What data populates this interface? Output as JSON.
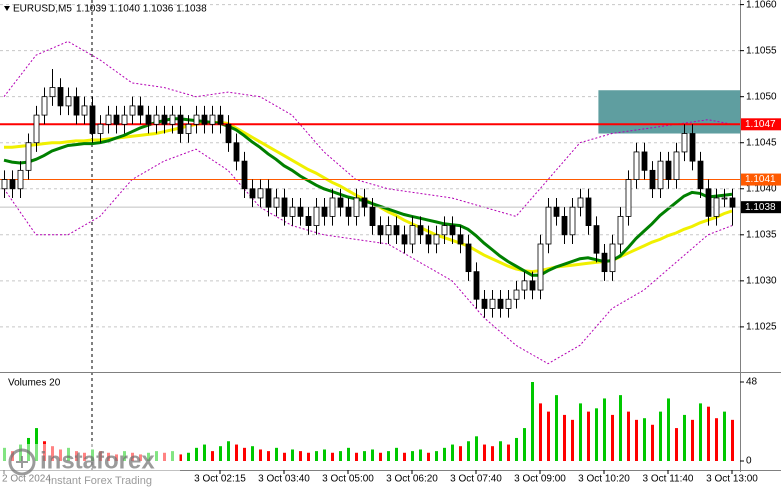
{
  "chart_data": {
    "type": "candlestick",
    "header": {
      "symbol": "EURUSD,M5",
      "quote": "1.1039 1.1040 1.1036 1.1038"
    },
    "categories": [
      "2 Oct 2024",
      null,
      null,
      null,
      null,
      null,
      null,
      null,
      null,
      null,
      null,
      null,
      null,
      null,
      null,
      null,
      null,
      null,
      null,
      null,
      null,
      null,
      null,
      null,
      null,
      null,
      null,
      "3 Oct 02:15",
      null,
      null,
      null,
      null,
      null,
      null,
      null,
      "3 Oct 03:40",
      null,
      null,
      null,
      null,
      null,
      null,
      null,
      "3 Oct 05:00",
      null,
      null,
      null,
      null,
      null,
      null,
      null,
      "3 Oct 06:20",
      null,
      null,
      null,
      null,
      null,
      null,
      null,
      "3 Oct 07:40",
      null,
      null,
      null,
      null,
      null,
      null,
      null,
      "3 Oct 09:00",
      null,
      null,
      null,
      null,
      null,
      null,
      null,
      "3 Oct 10:20",
      null,
      null,
      null,
      null,
      null,
      null,
      null,
      "3 Oct 11:40",
      null,
      null,
      null,
      null,
      null,
      null,
      null,
      "3 Oct 13:00"
    ],
    "open": [
      1.104,
      1.1041,
      1.104,
      1.1042,
      1.1045,
      1.1048,
      1.105,
      1.1051,
      1.1049,
      1.105,
      1.1048,
      1.1049,
      1.1046,
      1.1047,
      1.1048,
      1.1047,
      1.1048,
      1.1049,
      1.1048,
      1.1047,
      1.1048,
      1.1047,
      1.1048,
      1.1046,
      1.1047,
      1.1048,
      1.1047,
      1.1048,
      1.1047,
      1.1045,
      1.1043,
      1.104,
      1.1039,
      1.104,
      1.1038,
      1.1039,
      1.1037,
      1.1038,
      1.1037,
      1.1036,
      1.1038,
      1.1037,
      1.1039,
      1.1038,
      1.1037,
      1.1039,
      1.1038,
      1.1036,
      1.1035,
      1.1036,
      1.1035,
      1.1034,
      1.1036,
      1.1035,
      1.1034,
      1.1035,
      1.1036,
      1.1035,
      1.1034,
      1.1031,
      1.1028,
      1.1027,
      1.1028,
      1.1027,
      1.1028,
      1.1029,
      1.103,
      1.1029,
      1.1034,
      1.1038,
      1.1037,
      1.1035,
      1.1038,
      1.1039,
      1.1036,
      1.1033,
      1.1031,
      1.1034,
      1.1037,
      1.1041,
      1.1044,
      1.1042,
      1.104,
      1.1043,
      1.1041,
      1.1044,
      1.1046,
      1.1043,
      1.104,
      1.1037,
      1.1039,
      1.1039
    ],
    "high": [
      1.1042,
      1.1042,
      1.1043,
      1.1046,
      1.1049,
      1.1051,
      1.1053,
      1.1052,
      1.1051,
      1.1051,
      1.105,
      1.105,
      1.1048,
      1.1049,
      1.1049,
      1.1049,
      1.105,
      1.105,
      1.1049,
      1.1049,
      1.1049,
      1.1049,
      1.1049,
      1.1048,
      1.1049,
      1.1049,
      1.1049,
      1.1049,
      1.1048,
      1.1046,
      1.1044,
      1.1041,
      1.1041,
      1.1041,
      1.104,
      1.104,
      1.1039,
      1.1039,
      1.1038,
      1.1039,
      1.1039,
      1.104,
      1.104,
      1.1039,
      1.104,
      1.104,
      1.1039,
      1.1037,
      1.1037,
      1.1037,
      1.1036,
      1.1037,
      1.1037,
      1.1036,
      1.1036,
      1.1037,
      1.1037,
      1.1036,
      1.1035,
      1.1032,
      1.1029,
      1.1029,
      1.1029,
      1.1029,
      1.103,
      1.1031,
      1.1031,
      1.1035,
      1.1039,
      1.1039,
      1.1038,
      1.1039,
      1.104,
      1.104,
      1.1037,
      1.1034,
      1.1035,
      1.1038,
      1.1042,
      1.1045,
      1.1045,
      1.1043,
      1.1044,
      1.1044,
      1.1045,
      1.1047,
      1.1047,
      1.1044,
      1.1041,
      1.104,
      1.104,
      1.104
    ],
    "low": [
      1.1039,
      1.1039,
      1.1039,
      1.1041,
      1.1044,
      1.1047,
      1.1049,
      1.1048,
      1.1048,
      1.1047,
      1.1047,
      1.1045,
      1.1045,
      1.1046,
      1.1046,
      1.1046,
      1.1047,
      1.1047,
      1.1046,
      1.1046,
      1.1046,
      1.1046,
      1.1045,
      1.1045,
      1.1046,
      1.1046,
      1.1046,
      1.1046,
      1.1044,
      1.1042,
      1.1039,
      1.1038,
      1.1038,
      1.1037,
      1.1037,
      1.1036,
      1.1036,
      1.1036,
      1.1035,
      1.1035,
      1.1036,
      1.1036,
      1.1037,
      1.1036,
      1.1036,
      1.1037,
      1.1035,
      1.1034,
      1.1034,
      1.1034,
      1.1033,
      1.1033,
      1.1034,
      1.1033,
      1.1033,
      1.1034,
      1.1034,
      1.1033,
      1.103,
      1.1027,
      1.1026,
      1.1026,
      1.1026,
      1.1026,
      1.1027,
      1.1028,
      1.1028,
      1.1028,
      1.1033,
      1.1036,
      1.1034,
      1.1034,
      1.1037,
      1.1035,
      1.1032,
      1.103,
      1.103,
      1.1033,
      1.1036,
      1.104,
      1.1041,
      1.1039,
      1.1039,
      1.104,
      1.104,
      1.1043,
      1.1042,
      1.1039,
      1.1036,
      1.1036,
      1.1038,
      1.1036
    ],
    "close": [
      1.1041,
      1.104,
      1.1042,
      1.1045,
      1.1048,
      1.105,
      1.1051,
      1.1049,
      1.105,
      1.1048,
      1.1049,
      1.1046,
      1.1047,
      1.1048,
      1.1047,
      1.1048,
      1.1049,
      1.1048,
      1.1047,
      1.1048,
      1.1047,
      1.1048,
      1.1046,
      1.1047,
      1.1048,
      1.1047,
      1.1048,
      1.1047,
      1.1045,
      1.1043,
      1.104,
      1.1039,
      1.104,
      1.1038,
      1.1039,
      1.1037,
      1.1038,
      1.1037,
      1.1036,
      1.1038,
      1.1037,
      1.1039,
      1.1038,
      1.1037,
      1.1039,
      1.1038,
      1.1036,
      1.1035,
      1.1036,
      1.1035,
      1.1034,
      1.1036,
      1.1035,
      1.1034,
      1.1035,
      1.1036,
      1.1035,
      1.1034,
      1.1031,
      1.1028,
      1.1027,
      1.1028,
      1.1027,
      1.1028,
      1.1029,
      1.103,
      1.1029,
      1.1034,
      1.1038,
      1.1037,
      1.1035,
      1.1038,
      1.1039,
      1.1036,
      1.1033,
      1.1031,
      1.1034,
      1.1037,
      1.1041,
      1.1044,
      1.1042,
      1.104,
      1.1043,
      1.1041,
      1.1044,
      1.1046,
      1.1043,
      1.104,
      1.1037,
      1.1039,
      1.1039,
      1.1038
    ],
    "up_color": "#ffffff",
    "down_color": "#000000",
    "outline_color": "#000000",
    "series": [
      {
        "color": "#f0f000",
        "width": 3,
        "values": [
          1.10445,
          1.10445,
          1.10446,
          1.10447,
          1.10448,
          1.10449,
          1.1045,
          1.1045,
          1.10451,
          1.10452,
          1.10452,
          1.10453,
          1.10453,
          1.10454,
          1.10455,
          1.10456,
          1.10457,
          1.10458,
          1.10459,
          1.1046,
          1.10462,
          1.10464,
          1.10466,
          1.10468,
          1.1047,
          1.10471,
          1.10472,
          1.10472,
          1.10471,
          1.10466,
          1.10461,
          1.10456,
          1.10451,
          1.10446,
          1.10441,
          1.10436,
          1.10431,
          1.10426,
          1.10421,
          1.10417,
          1.10412,
          1.10407,
          1.10403,
          1.10398,
          1.10393,
          1.10389,
          1.10384,
          1.1038,
          1.10375,
          1.10371,
          1.10366,
          1.10362,
          1.10358,
          1.10354,
          1.1035,
          1.10347,
          1.10344,
          1.10341,
          1.10338,
          1.10333,
          1.10328,
          1.10324,
          1.1032,
          1.10316,
          1.10313,
          1.10311,
          1.1031,
          1.10311,
          1.10313,
          1.10315,
          1.10316,
          1.10317,
          1.10318,
          1.10319,
          1.1032,
          1.10321,
          1.10322,
          1.10326,
          1.1033,
          1.10334,
          1.10338,
          1.10342,
          1.10345,
          1.10349,
          1.10352,
          1.10356,
          1.10359,
          1.10363,
          1.10366,
          1.10369,
          1.10373,
          1.10376
        ]
      },
      {
        "color": "#008000",
        "width": 3,
        "values": [
          1.10431,
          1.10429,
          1.10428,
          1.10429,
          1.10432,
          1.10436,
          1.10441,
          1.10444,
          1.10447,
          1.10448,
          1.10449,
          1.10449,
          1.1045,
          1.10452,
          1.10455,
          1.10458,
          1.10462,
          1.10466,
          1.10469,
          1.10472,
          1.10474,
          1.10476,
          1.10476,
          1.10475,
          1.10474,
          1.10473,
          1.10472,
          1.10471,
          1.10468,
          1.10464,
          1.10458,
          1.10451,
          1.10445,
          1.10438,
          1.10432,
          1.10425,
          1.1042,
          1.10414,
          1.10409,
          1.10404,
          1.104,
          1.10397,
          1.10394,
          1.10391,
          1.10389,
          1.10387,
          1.10384,
          1.10381,
          1.10378,
          1.10375,
          1.10372,
          1.1037,
          1.10368,
          1.10366,
          1.10364,
          1.10362,
          1.10361,
          1.1036,
          1.10356,
          1.10349,
          1.10341,
          1.10334,
          1.10327,
          1.10321,
          1.10316,
          1.10311,
          1.10306,
          1.10306,
          1.10311,
          1.10315,
          1.10318,
          1.10321,
          1.10324,
          1.10325,
          1.10323,
          1.10321,
          1.10322,
          1.10327,
          1.10336,
          1.10346,
          1.10354,
          1.10362,
          1.10371,
          1.10378,
          1.10385,
          1.10392,
          1.10396,
          1.10395,
          1.10391,
          1.10392,
          1.10393,
          1.10394
        ]
      },
      {
        "color": "#b400b4",
        "width": 1,
        "style": "dotted",
        "x": [
          0,
          4,
          8,
          12,
          16,
          20,
          24,
          28,
          32,
          36,
          40,
          44,
          48,
          52,
          56,
          60,
          64,
          68,
          72,
          76,
          80,
          84,
          88,
          91
        ],
        "values": [
          1.105,
          1.10545,
          1.1056,
          1.1054,
          1.10515,
          1.1051,
          1.105,
          1.10505,
          1.105,
          1.1048,
          1.1044,
          1.1041,
          1.104,
          1.10395,
          1.1039,
          1.1038,
          1.1037,
          1.1041,
          1.1045,
          1.1046,
          1.10465,
          1.1047,
          1.10475,
          1.1047
        ]
      },
      {
        "color": "#b400b4",
        "width": 1,
        "style": "dotted",
        "x": [
          0,
          4,
          8,
          12,
          16,
          20,
          24,
          28,
          32,
          36,
          40,
          44,
          48,
          52,
          56,
          60,
          64,
          68,
          72,
          76,
          80,
          84,
          88,
          91
        ],
        "values": [
          1.104,
          1.1035,
          1.1035,
          1.1037,
          1.1041,
          1.1043,
          1.10443,
          1.1042,
          1.1038,
          1.1036,
          1.1035,
          1.10345,
          1.1034,
          1.1032,
          1.103,
          1.1026,
          1.1023,
          1.1021,
          1.1023,
          1.1027,
          1.1029,
          1.1032,
          1.1035,
          1.1036
        ]
      }
    ],
    "levels": [
      {
        "value": 1.1047,
        "color": "#ff0000",
        "width": 2
      },
      {
        "value": 1.1041,
        "color": "#ff5a00",
        "width": 1
      },
      {
        "value": 1.1038,
        "color": "#c0c0c0",
        "width": 1,
        "box": "#000000"
      }
    ],
    "zone": {
      "low": 1.1046,
      "high": 1.10507,
      "x_from": 74.3,
      "color": "#5f9ea0"
    },
    "marker_x": 11,
    "ylim": [
      1.10201,
      1.10605
    ],
    "yticks": [
      {
        "value": 1.106,
        "label": "1.1060"
      },
      1.1055,
      {
        "value": 1.105,
        "label": "1.1050"
      },
      1.1045,
      {
        "value": 1.104,
        "label": "1.1040"
      },
      1.1035,
      {
        "value": 1.103,
        "label": "1.1030"
      },
      1.1025
    ],
    "grid": true,
    "volume_title": "Volumes 20",
    "volumes": [
      8,
      6,
      10,
      14,
      20,
      12,
      9,
      7,
      8,
      6,
      5,
      7,
      6,
      5,
      4,
      6,
      5,
      4,
      5,
      6,
      5,
      6,
      4,
      5,
      8,
      10,
      6,
      9,
      12,
      10,
      8,
      9,
      7,
      6,
      8,
      5,
      7,
      6,
      5,
      6,
      7,
      5,
      6,
      8,
      5,
      6,
      7,
      5,
      6,
      8,
      5,
      6,
      7,
      5,
      6,
      8,
      10,
      9,
      12,
      15,
      10,
      9,
      12,
      10,
      14,
      20,
      48,
      35,
      30,
      40,
      28,
      25,
      35,
      30,
      32,
      38,
      28,
      40,
      30,
      25,
      26,
      22,
      30,
      38,
      20,
      28,
      25,
      35,
      33,
      26,
      30,
      25
    ],
    "vol_ylim": [
      0,
      52
    ],
    "vol_yticks": [
      0,
      48
    ],
    "vol_colors": {
      "up": "#00c800",
      "down": "#ff0000"
    }
  },
  "watermark": {
    "brand": "instaforex",
    "tagline": "Instant Forex Trading"
  }
}
